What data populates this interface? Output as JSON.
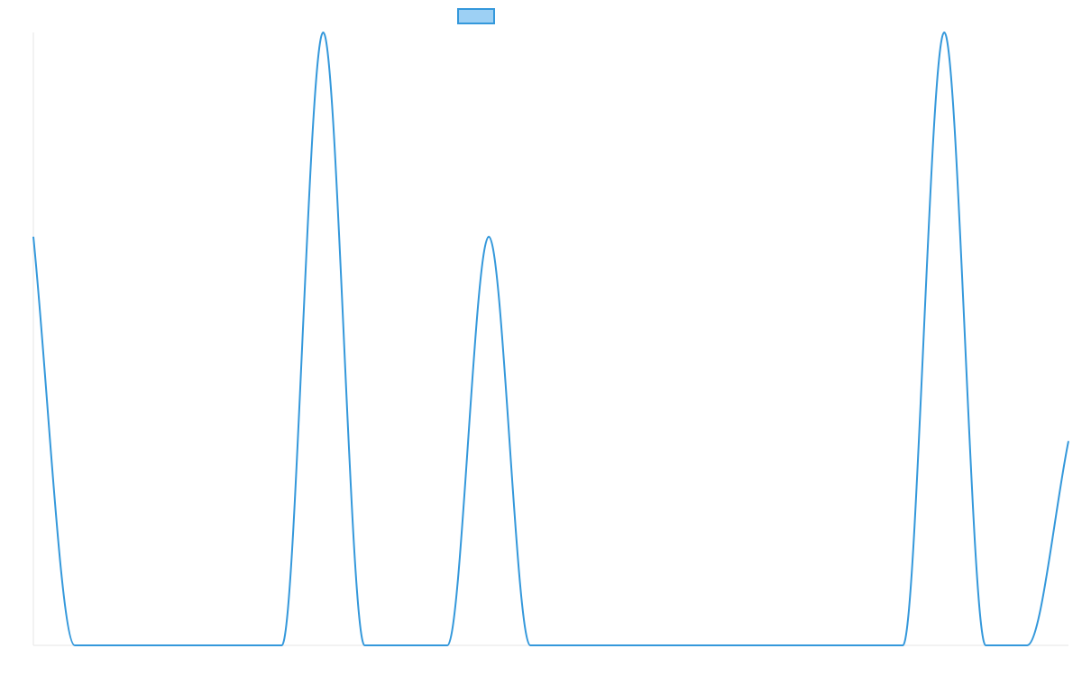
{
  "chart_data": {
    "type": "line",
    "title": "",
    "xlabel": "",
    "ylabel": "",
    "x": [
      0,
      1,
      2,
      3,
      4,
      5,
      6,
      7,
      8,
      9,
      10,
      11,
      12,
      13,
      14,
      15,
      16,
      17,
      18,
      19,
      20,
      21,
      22,
      23,
      24,
      25
    ],
    "series": [
      {
        "name": "",
        "values": [
          2,
          0,
          0,
          0,
          0,
          0,
          0,
          3,
          0,
          0,
          0,
          2,
          0,
          0,
          0,
          0,
          0,
          0,
          0,
          0,
          0,
          0,
          3,
          0,
          0,
          1
        ]
      }
    ],
    "ylim": [
      0,
      3
    ],
    "grid": false,
    "legend": "top-center",
    "colors": {
      "line": "#3498db",
      "legend_fill": "#9dd0f4",
      "axis": "#e6e6e6"
    }
  }
}
